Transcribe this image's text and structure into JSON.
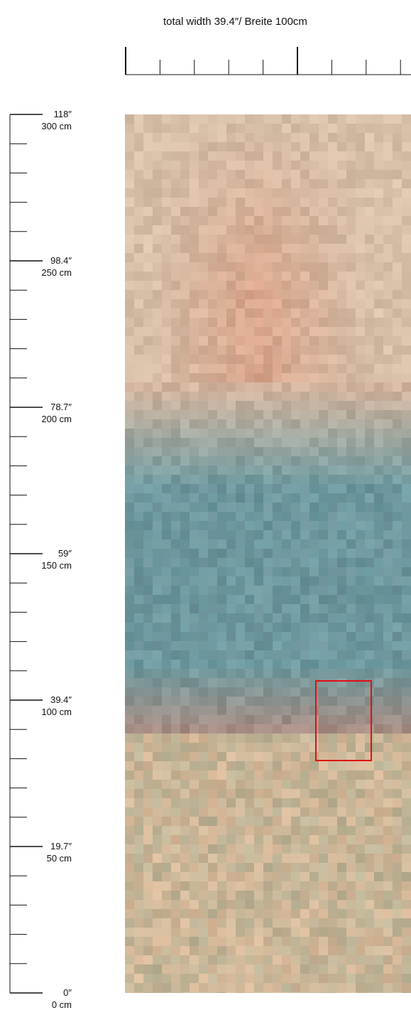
{
  "header": {
    "width_label": "total width 39.4″/ Breite 100cm"
  },
  "height_ruler": {
    "marks": [
      {
        "inch": "118″",
        "cm": "300 cm",
        "value_cm": 300
      },
      {
        "inch": "98.4″",
        "cm": "250 cm",
        "value_cm": 250
      },
      {
        "inch": "78.7″",
        "cm": "200 cm",
        "value_cm": 200
      },
      {
        "inch": "59″",
        "cm": "150 cm",
        "value_cm": 150
      },
      {
        "inch": "39.4″",
        "cm": "100 cm",
        "value_cm": 100
      },
      {
        "inch": "19.7″",
        "cm": "50 cm",
        "value_cm": 50
      },
      {
        "inch": "0″",
        "cm": "0 cm",
        "value_cm": 0
      }
    ],
    "max_cm": 300,
    "minor_step_cm": 10
  },
  "width_ruler": {
    "max_cm": 100,
    "minor_step_cm": 10
  },
  "colors": {
    "ruler": "#111111",
    "highlight": "#e01010",
    "art_top": "#d7bfa8",
    "art_salmon": "#d9a188",
    "art_teal": "#6d9aa0",
    "art_bottom": "#d9b99a",
    "art_green": "#93a98e"
  }
}
